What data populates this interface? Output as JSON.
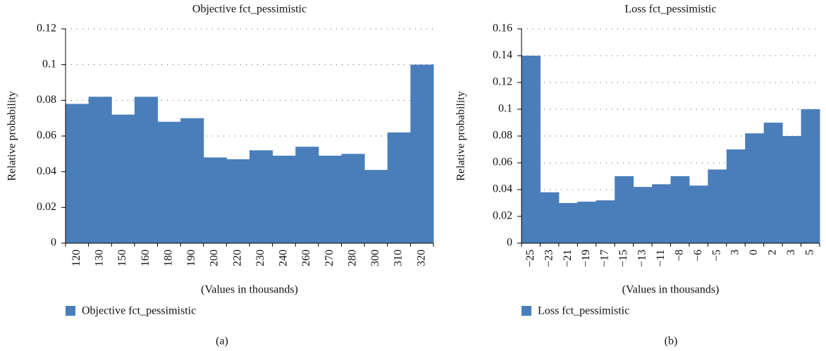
{
  "chart_data": [
    {
      "type": "bar",
      "title": "Objective fct_pessimistic",
      "x_label": "(Values in thousands)",
      "y_label": "Relative probability",
      "caption": "(a)",
      "categories": [
        "120",
        "130",
        "150",
        "160",
        "180",
        "190",
        "200",
        "220",
        "230",
        "240",
        "260",
        "270",
        "280",
        "300",
        "310",
        "320"
      ],
      "series": [
        {
          "name": "Objective fct_pessimistic",
          "color": "#4a7ebb",
          "values": [
            0.078,
            0.082,
            0.072,
            0.082,
            0.068,
            0.07,
            0.048,
            0.047,
            0.052,
            0.049,
            0.054,
            0.049,
            0.05,
            0.041,
            0.062,
            0.1
          ]
        }
      ],
      "ylim": [
        0,
        0.12
      ],
      "yticks": [
        0,
        0.02,
        0.04,
        0.06,
        0.08,
        0.1,
        0.12
      ],
      "grid": true
    },
    {
      "type": "bar",
      "title": "Loss fct_pessimistic",
      "x_label": "(Values in thousands)",
      "y_label": "Relative probability",
      "caption": "(b)",
      "categories": [
        "−25",
        "−23",
        "−21",
        "−19",
        "−17",
        "−15",
        "−13",
        "−11",
        "−8",
        "−6",
        "−5",
        "3",
        "0",
        "2",
        "3",
        "5"
      ],
      "series": [
        {
          "name": "Loss fct_pessimistic",
          "color": "#4a7ebb",
          "values": [
            0.14,
            0.038,
            0.03,
            0.031,
            0.032,
            0.05,
            0.042,
            0.044,
            0.05,
            0.043,
            0.055,
            0.07,
            0.082,
            0.09,
            0.08,
            0.1
          ]
        }
      ],
      "ylim": [
        0,
        0.16
      ],
      "yticks": [
        0,
        0.02,
        0.04,
        0.06,
        0.08,
        0.1,
        0.12,
        0.14,
        0.16
      ],
      "grid": true
    }
  ]
}
